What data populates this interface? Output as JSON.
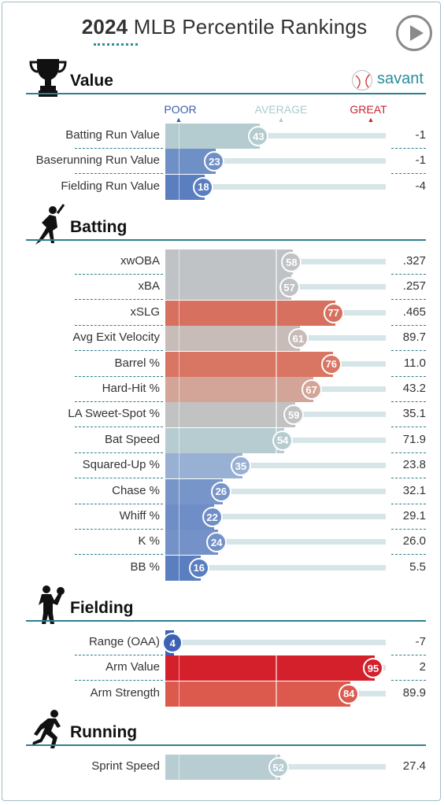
{
  "header": {
    "title_year": "2024",
    "title_rest": " MLB Percentile Rankings"
  },
  "brand": {
    "savant_label": "savant",
    "icon": "baseball-icon"
  },
  "scale": {
    "poor": "POOR",
    "average": "AVERAGE",
    "great": "GREAT"
  },
  "colors": {
    "poor": "#3b5da8",
    "average_gray": "#bcc0c2",
    "great": "#c8232c",
    "track": "#d6e6e8",
    "accent_line": "#2d7f8e",
    "average_teal": "#b9cfd2"
  },
  "sections": [
    {
      "title": "Value",
      "icon": "trophy-icon",
      "rows": [
        {
          "label": "Batting Run Value",
          "percentile": 43,
          "value": "-1",
          "color": "#b4cbcf",
          "text": "#ffffff"
        },
        {
          "label": "Baserunning Run Value",
          "percentile": 23,
          "value": "-1",
          "color": "#6f90c7",
          "text": "#ffffff"
        },
        {
          "label": "Fielding Run Value",
          "percentile": 18,
          "value": "-4",
          "color": "#5b7ec0",
          "text": "#ffffff"
        }
      ]
    },
    {
      "title": "Batting",
      "icon": "batter-icon",
      "rows": [
        {
          "label": "xwOBA",
          "percentile": 58,
          "value": ".327",
          "color": "#c0c3c5"
        },
        {
          "label": "xBA",
          "percentile": 57,
          "value": ".257",
          "color": "#c0c3c5"
        },
        {
          "label": "xSLG",
          "percentile": 77,
          "value": ".465",
          "color": "#d7705f"
        },
        {
          "label": "Avg Exit Velocity",
          "percentile": 61,
          "value": "89.7",
          "color": "#c8bcb9"
        },
        {
          "label": "Barrel %",
          "percentile": 76,
          "value": "11.0",
          "color": "#d87563"
        },
        {
          "label": "Hard-Hit %",
          "percentile": 67,
          "value": "43.2",
          "color": "#d3a598"
        },
        {
          "label": "LA Sweet-Spot %",
          "percentile": 59,
          "value": "35.1",
          "color": "#c2c2c2"
        },
        {
          "label": "Bat Speed",
          "percentile": 54,
          "value": "71.9",
          "color": "#b6ccd0"
        },
        {
          "label": "Squared-Up %",
          "percentile": 35,
          "value": "23.8",
          "color": "#98b0d3"
        },
        {
          "label": "Chase %",
          "percentile": 26,
          "value": "32.1",
          "color": "#7895c9"
        },
        {
          "label": "Whiff %",
          "percentile": 22,
          "value": "29.1",
          "color": "#6f8ec7"
        },
        {
          "label": "K %",
          "percentile": 24,
          "value": "26.0",
          "color": "#7491c8"
        },
        {
          "label": "BB %",
          "percentile": 16,
          "value": "5.5",
          "color": "#5a7ec0"
        }
      ]
    },
    {
      "title": "Fielding",
      "icon": "fielder-icon",
      "rows": [
        {
          "label": "Range (OAA)",
          "percentile": 4,
          "value": "-7",
          "color": "#3c62b3"
        },
        {
          "label": "Arm Value",
          "percentile": 95,
          "value": "2",
          "color": "#d4202a"
        },
        {
          "label": "Arm Strength",
          "percentile": 84,
          "value": "89.9",
          "color": "#dc5a4d"
        }
      ]
    },
    {
      "title": "Running",
      "icon": "runner-icon",
      "rows": [
        {
          "label": "Sprint Speed",
          "percentile": 52,
          "value": "27.4",
          "color": "#b7cdd1"
        }
      ]
    }
  ]
}
